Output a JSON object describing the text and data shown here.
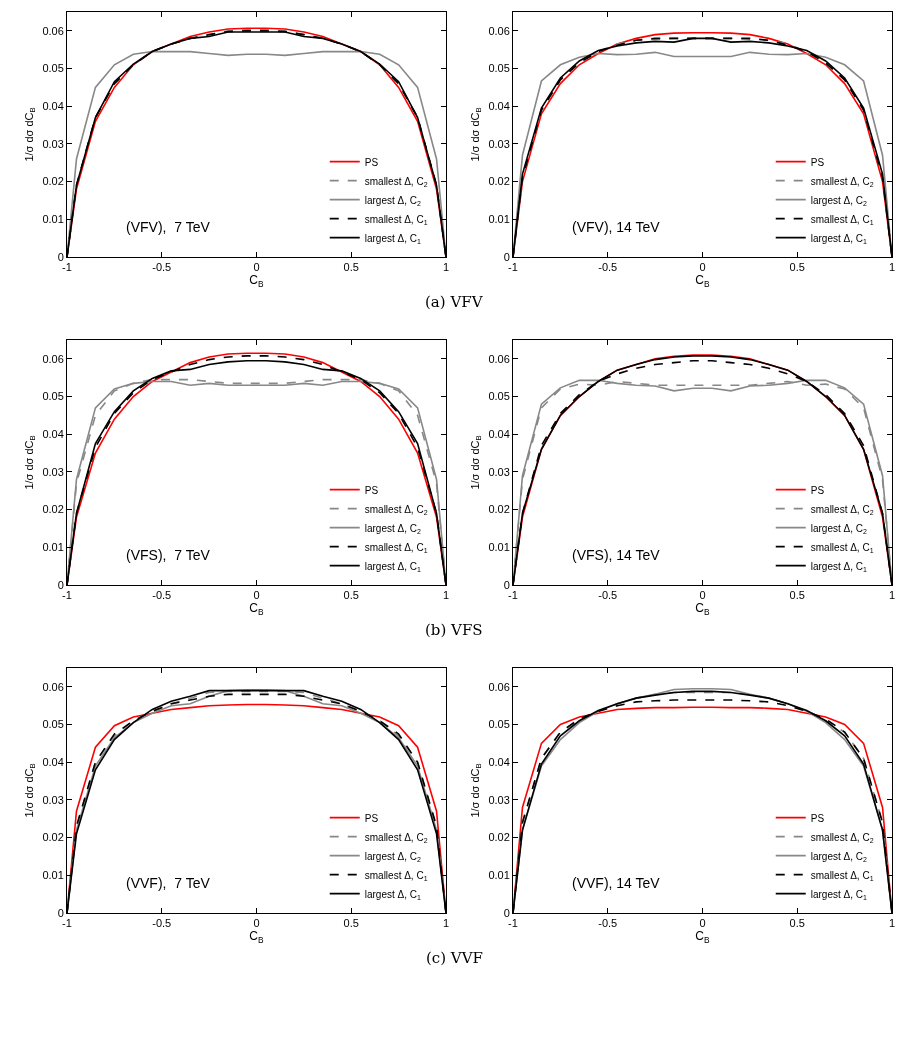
{
  "chart_data": [
    {
      "type": "line",
      "xlabel": "C$_{B}$",
      "ylabel": "1/σ dσ dC$_{B}$",
      "annotations": [
        "(VFV),  7 TeV",
        "(a) VFV"
      ],
      "x": [
        -1,
        -0.95,
        -0.85,
        -0.75,
        -0.65,
        -0.55,
        -0.45,
        -0.35,
        -0.25,
        -0.15,
        -0.05,
        0.05,
        0.15,
        0.25,
        0.35,
        0.45,
        0.55,
        0.65,
        0.75,
        0.85,
        0.95,
        1
      ],
      "xlim": [
        -1,
        1
      ],
      "xticks": [
        -1,
        -0.5,
        0,
        0.5,
        1
      ],
      "ylim": [
        0,
        0.065
      ],
      "yticks": [
        0,
        0.01,
        0.02,
        0.03,
        0.04,
        0.05,
        0.06
      ],
      "legend": "bottom right",
      "series": [
        {
          "name": "PS",
          "color": "#ff0000",
          "line_style": "solid",
          "values": [
            0,
            0.018,
            0.036,
            0.045,
            0.051,
            0.0545,
            0.0565,
            0.0585,
            0.0597,
            0.0605,
            0.0607,
            0.0607,
            0.0605,
            0.0597,
            0.0585,
            0.0565,
            0.0545,
            0.051,
            0.045,
            0.036,
            0.018,
            0
          ]
        },
        {
          "name": "smallest Δ, C$_{2}$",
          "color": "#888888",
          "line_style": "dashed",
          "values": [
            0,
            0.019,
            0.037,
            0.046,
            0.051,
            0.0545,
            0.0565,
            0.058,
            0.059,
            0.06,
            0.0603,
            0.0603,
            0.06,
            0.059,
            0.058,
            0.0565,
            0.0545,
            0.051,
            0.046,
            0.037,
            0.019,
            0
          ]
        },
        {
          "name": "largest Δ, C$_{2}$",
          "color": "#888888",
          "line_style": "solid",
          "values": [
            0,
            0.026,
            0.045,
            0.051,
            0.0538,
            0.0545,
            0.0545,
            0.0545,
            0.054,
            0.0535,
            0.0538,
            0.0538,
            0.0535,
            0.054,
            0.0545,
            0.0545,
            0.0545,
            0.0538,
            0.051,
            0.045,
            0.026,
            0
          ]
        },
        {
          "name": "smallest Δ, C$_{1}$",
          "color": "#000000",
          "line_style": "dashed",
          "values": [
            0,
            0.019,
            0.037,
            0.046,
            0.051,
            0.0545,
            0.0565,
            0.058,
            0.059,
            0.0598,
            0.06,
            0.06,
            0.0598,
            0.059,
            0.058,
            0.0565,
            0.0545,
            0.051,
            0.046,
            0.037,
            0.019,
            0
          ]
        },
        {
          "name": "largest Δ, C$_{1}$",
          "color": "#000000",
          "line_style": "solid",
          "values": [
            0,
            0.019,
            0.037,
            0.0465,
            0.0512,
            0.0545,
            0.0565,
            0.058,
            0.0585,
            0.0597,
            0.0597,
            0.0597,
            0.0597,
            0.0585,
            0.058,
            0.0565,
            0.0545,
            0.0512,
            0.0465,
            0.037,
            0.019,
            0
          ]
        }
      ]
    },
    {
      "type": "line",
      "xlabel": "C$_{B}$",
      "ylabel": "1/σ dσ dC$_{B}$",
      "annotations": [
        "(VFV), 14 TeV"
      ],
      "x": [
        -1,
        -0.95,
        -0.85,
        -0.75,
        -0.65,
        -0.55,
        -0.45,
        -0.35,
        -0.25,
        -0.15,
        -0.05,
        0.05,
        0.15,
        0.25,
        0.35,
        0.45,
        0.55,
        0.65,
        0.75,
        0.85,
        0.95,
        1
      ],
      "xlim": [
        -1,
        1
      ],
      "xticks": [
        -1,
        -0.5,
        0,
        0.5,
        1
      ],
      "ylim": [
        0,
        0.065
      ],
      "yticks": [
        0,
        0.01,
        0.02,
        0.03,
        0.04,
        0.05,
        0.06
      ],
      "legend": "bottom right",
      "series": [
        {
          "name": "PS",
          "color": "#ff0000",
          "line_style": "solid",
          "values": [
            0,
            0.02,
            0.038,
            0.046,
            0.051,
            0.054,
            0.0565,
            0.058,
            0.059,
            0.0594,
            0.0595,
            0.0595,
            0.0594,
            0.059,
            0.058,
            0.0565,
            0.054,
            0.051,
            0.046,
            0.038,
            0.02,
            0
          ]
        },
        {
          "name": "smallest Δ, C$_{2}$",
          "color": "#888888",
          "line_style": "dashed",
          "values": [
            0,
            0.021,
            0.039,
            0.047,
            0.0515,
            0.0545,
            0.0565,
            0.0575,
            0.0578,
            0.058,
            0.058,
            0.058,
            0.058,
            0.0578,
            0.0575,
            0.0565,
            0.0545,
            0.0515,
            0.047,
            0.039,
            0.021,
            0
          ]
        },
        {
          "name": "largest Δ, C$_{2}$",
          "color": "#888888",
          "line_style": "solid",
          "values": [
            0,
            0.027,
            0.0467,
            0.051,
            0.053,
            0.054,
            0.0537,
            0.0538,
            0.0543,
            0.0532,
            0.0532,
            0.0532,
            0.0532,
            0.0543,
            0.0538,
            0.0537,
            0.054,
            0.053,
            0.051,
            0.0467,
            0.027,
            0
          ]
        },
        {
          "name": "smallest Δ, C$_{1}$",
          "color": "#000000",
          "line_style": "dashed",
          "values": [
            0,
            0.021,
            0.039,
            0.047,
            0.0515,
            0.0545,
            0.0562,
            0.0575,
            0.058,
            0.058,
            0.058,
            0.058,
            0.058,
            0.058,
            0.0575,
            0.0562,
            0.0545,
            0.0515,
            0.047,
            0.039,
            0.021,
            0
          ]
        },
        {
          "name": "largest Δ, C$_{1}$",
          "color": "#000000",
          "line_style": "solid",
          "values": [
            0,
            0.022,
            0.0395,
            0.0475,
            0.052,
            0.0548,
            0.056,
            0.0568,
            0.0572,
            0.057,
            0.058,
            0.058,
            0.057,
            0.0572,
            0.0568,
            0.056,
            0.0548,
            0.052,
            0.0475,
            0.0395,
            0.022,
            0
          ]
        }
      ]
    },
    {
      "type": "line",
      "xlabel": "C$_{B}$",
      "ylabel": "1/σ dσ dC$_{B}$",
      "annotations": [
        "(VFS),  7 TeV",
        "(b) VFS"
      ],
      "x": [
        -1,
        -0.95,
        -0.85,
        -0.75,
        -0.65,
        -0.55,
        -0.45,
        -0.35,
        -0.25,
        -0.15,
        -0.05,
        0.05,
        0.15,
        0.25,
        0.35,
        0.45,
        0.55,
        0.65,
        0.75,
        0.85,
        0.95,
        1
      ],
      "xlim": [
        -1,
        1
      ],
      "xticks": [
        -1,
        -0.5,
        0,
        0.5,
        1
      ],
      "ylim": [
        0,
        0.065
      ],
      "yticks": [
        0,
        0.01,
        0.02,
        0.03,
        0.04,
        0.05,
        0.06
      ],
      "legend": "bottom right",
      "series": [
        {
          "name": "PS",
          "color": "#ff0000",
          "line_style": "solid",
          "values": [
            0,
            0.018,
            0.035,
            0.044,
            0.05,
            0.054,
            0.0565,
            0.059,
            0.0605,
            0.0613,
            0.0615,
            0.0615,
            0.0613,
            0.0605,
            0.059,
            0.0565,
            0.054,
            0.05,
            0.044,
            0.035,
            0.018,
            0
          ]
        },
        {
          "name": "smallest Δ, C$_{2}$",
          "color": "#888888",
          "line_style": "dashed",
          "values": [
            0,
            0.027,
            0.045,
            0.0515,
            0.0535,
            0.0545,
            0.0545,
            0.0545,
            0.054,
            0.0535,
            0.0535,
            0.0535,
            0.0535,
            0.054,
            0.0545,
            0.0545,
            0.0545,
            0.0535,
            0.0515,
            0.045,
            0.027,
            0
          ]
        },
        {
          "name": "largest Δ, C$_{2}$",
          "color": "#888888",
          "line_style": "solid",
          "values": [
            0,
            0.028,
            0.047,
            0.052,
            0.0535,
            0.054,
            0.054,
            0.053,
            0.0535,
            0.053,
            0.053,
            0.053,
            0.053,
            0.0535,
            0.053,
            0.054,
            0.054,
            0.0535,
            0.052,
            0.047,
            0.028,
            0
          ]
        },
        {
          "name": "smallest Δ, C$_{1}$",
          "color": "#000000",
          "line_style": "dashed",
          "values": [
            0,
            0.019,
            0.0365,
            0.0455,
            0.051,
            0.0545,
            0.0565,
            0.0585,
            0.0598,
            0.0605,
            0.0608,
            0.0608,
            0.0605,
            0.0598,
            0.0585,
            0.0565,
            0.0545,
            0.051,
            0.0455,
            0.0365,
            0.019,
            0
          ]
        },
        {
          "name": "largest Δ, C$_{1}$",
          "color": "#000000",
          "line_style": "solid",
          "values": [
            0,
            0.019,
            0.0375,
            0.046,
            0.0515,
            0.0548,
            0.0568,
            0.0572,
            0.0585,
            0.0592,
            0.0595,
            0.0595,
            0.0592,
            0.0585,
            0.0572,
            0.0568,
            0.0548,
            0.0515,
            0.046,
            0.0375,
            0.019,
            0
          ]
        }
      ]
    },
    {
      "type": "line",
      "xlabel": "C$_{B}$",
      "ylabel": "1/σ dσ dC$_{B}$",
      "annotations": [
        "(VFS), 14 TeV"
      ],
      "x": [
        -1,
        -0.95,
        -0.85,
        -0.75,
        -0.65,
        -0.55,
        -0.45,
        -0.35,
        -0.25,
        -0.15,
        -0.05,
        0.05,
        0.15,
        0.25,
        0.35,
        0.45,
        0.55,
        0.65,
        0.75,
        0.85,
        0.95,
        1
      ],
      "xlim": [
        -1,
        1
      ],
      "xticks": [
        -1,
        -0.5,
        0,
        0.5,
        1
      ],
      "ylim": [
        0,
        0.065
      ],
      "yticks": [
        0,
        0.01,
        0.02,
        0.03,
        0.04,
        0.05,
        0.06
      ],
      "legend": "bottom right",
      "series": [
        {
          "name": "PS",
          "color": "#ff0000",
          "line_style": "solid",
          "values": [
            0,
            0.018,
            0.036,
            0.045,
            0.05,
            0.054,
            0.057,
            0.0585,
            0.06,
            0.0607,
            0.061,
            0.061,
            0.0607,
            0.06,
            0.0585,
            0.057,
            0.054,
            0.05,
            0.045,
            0.036,
            0.018,
            0
          ]
        },
        {
          "name": "smallest Δ, C$_{2}$",
          "color": "#888888",
          "line_style": "dashed",
          "values": [
            0,
            0.028,
            0.047,
            0.052,
            0.0533,
            0.053,
            0.054,
            0.0535,
            0.053,
            0.053,
            0.053,
            0.053,
            0.053,
            0.053,
            0.0535,
            0.054,
            0.053,
            0.0533,
            0.052,
            0.047,
            0.028,
            0
          ]
        },
        {
          "name": "largest Δ, C$_{2}$",
          "color": "#888888",
          "line_style": "solid",
          "values": [
            0,
            0.029,
            0.048,
            0.0523,
            0.0543,
            0.0543,
            0.0535,
            0.053,
            0.0528,
            0.0515,
            0.0522,
            0.0522,
            0.0515,
            0.0528,
            0.053,
            0.0535,
            0.0543,
            0.0543,
            0.0523,
            0.048,
            0.029,
            0
          ]
        },
        {
          "name": "smallest Δ, C$_{1}$",
          "color": "#000000",
          "line_style": "dashed",
          "values": [
            0,
            0.019,
            0.037,
            0.0455,
            0.0505,
            0.054,
            0.056,
            0.0575,
            0.0585,
            0.059,
            0.0595,
            0.0595,
            0.059,
            0.0585,
            0.0575,
            0.056,
            0.054,
            0.0505,
            0.0455,
            0.037,
            0.019,
            0
          ]
        },
        {
          "name": "largest Δ, C$_{1}$",
          "color": "#000000",
          "line_style": "solid",
          "values": [
            0,
            0.019,
            0.036,
            0.045,
            0.05,
            0.054,
            0.057,
            0.0585,
            0.0598,
            0.0605,
            0.0608,
            0.0608,
            0.0605,
            0.0598,
            0.0585,
            0.057,
            0.054,
            0.05,
            0.045,
            0.036,
            0.019,
            0
          ]
        }
      ]
    },
    {
      "type": "line",
      "xlabel": "C$_{B}$",
      "ylabel": "1/σ dσ dC$_{B}$",
      "annotations": [
        "(VVF),  7 TeV",
        "(c) VVF"
      ],
      "x": [
        -1,
        -0.95,
        -0.85,
        -0.75,
        -0.65,
        -0.55,
        -0.45,
        -0.35,
        -0.25,
        -0.15,
        -0.05,
        0.05,
        0.15,
        0.25,
        0.35,
        0.45,
        0.55,
        0.65,
        0.75,
        0.85,
        0.95,
        1
      ],
      "xlim": [
        -1,
        1
      ],
      "xticks": [
        -1,
        -0.5,
        0,
        0.5,
        1
      ],
      "ylim": [
        0,
        0.065
      ],
      "yticks": [
        0,
        0.01,
        0.02,
        0.03,
        0.04,
        0.05,
        0.06
      ],
      "legend": "bottom right",
      "series": [
        {
          "name": "PS",
          "color": "#ff0000",
          "line_style": "solid",
          "values": [
            0,
            0.027,
            0.044,
            0.0497,
            0.052,
            0.053,
            0.054,
            0.0545,
            0.055,
            0.0552,
            0.0553,
            0.0553,
            0.0552,
            0.055,
            0.0545,
            0.054,
            0.053,
            0.052,
            0.0497,
            0.044,
            0.027,
            0
          ]
        },
        {
          "name": "smallest Δ, C$_{2}$",
          "color": "#888888",
          "line_style": "dashed",
          "values": [
            0,
            0.023,
            0.04,
            0.047,
            0.051,
            0.0535,
            0.0555,
            0.057,
            0.0585,
            0.0588,
            0.0588,
            0.0588,
            0.0588,
            0.0585,
            0.057,
            0.0555,
            0.0535,
            0.051,
            0.047,
            0.04,
            0.023,
            0
          ]
        },
        {
          "name": "largest Δ, C$_{2}$",
          "color": "#888888",
          "line_style": "solid",
          "values": [
            0,
            0.022,
            0.039,
            0.0465,
            0.0505,
            0.053,
            0.055,
            0.0555,
            0.0575,
            0.059,
            0.0592,
            0.0592,
            0.059,
            0.0575,
            0.0555,
            0.055,
            0.053,
            0.0505,
            0.0465,
            0.039,
            0.022,
            0
          ]
        },
        {
          "name": "smallest Δ, C$_{1}$",
          "color": "#000000",
          "line_style": "dashed",
          "values": [
            0,
            0.023,
            0.04,
            0.0475,
            0.051,
            0.0535,
            0.0555,
            0.0565,
            0.0575,
            0.058,
            0.058,
            0.058,
            0.058,
            0.0575,
            0.0565,
            0.0555,
            0.0535,
            0.051,
            0.0475,
            0.04,
            0.023,
            0
          ]
        },
        {
          "name": "largest Δ, C$_{1}$",
          "color": "#000000",
          "line_style": "solid",
          "values": [
            0,
            0.021,
            0.038,
            0.046,
            0.0505,
            0.054,
            0.0562,
            0.0575,
            0.059,
            0.059,
            0.059,
            0.059,
            0.059,
            0.059,
            0.0575,
            0.0562,
            0.054,
            0.0505,
            0.046,
            0.038,
            0.021,
            0
          ]
        }
      ]
    },
    {
      "type": "line",
      "xlabel": "C$_{B}$",
      "ylabel": "1/σ dσ dC$_{B}$",
      "annotations": [
        "(VVF), 14 TeV"
      ],
      "x": [
        -1,
        -0.95,
        -0.85,
        -0.75,
        -0.65,
        -0.55,
        -0.45,
        -0.35,
        -0.25,
        -0.15,
        -0.05,
        0.05,
        0.15,
        0.25,
        0.35,
        0.45,
        0.55,
        0.65,
        0.75,
        0.85,
        0.95,
        1
      ],
      "xlim": [
        -1,
        1
      ],
      "xticks": [
        -1,
        -0.5,
        0,
        0.5,
        1
      ],
      "ylim": [
        0,
        0.065
      ],
      "yticks": [
        0,
        0.01,
        0.02,
        0.03,
        0.04,
        0.05,
        0.06
      ],
      "legend": "bottom right",
      "series": [
        {
          "name": "PS",
          "color": "#ff0000",
          "line_style": "solid",
          "values": [
            0,
            0.028,
            0.045,
            0.05,
            0.052,
            0.053,
            0.054,
            0.0543,
            0.0545,
            0.0545,
            0.0546,
            0.0546,
            0.0545,
            0.0545,
            0.0543,
            0.054,
            0.053,
            0.052,
            0.05,
            0.045,
            0.028,
            0
          ]
        },
        {
          "name": "smallest Δ, C$_{2}$",
          "color": "#888888",
          "line_style": "dashed",
          "values": [
            0,
            0.024,
            0.041,
            0.048,
            0.051,
            0.0535,
            0.0555,
            0.057,
            0.058,
            0.0585,
            0.0585,
            0.0585,
            0.0585,
            0.058,
            0.057,
            0.0555,
            0.0535,
            0.051,
            0.048,
            0.041,
            0.024,
            0
          ]
        },
        {
          "name": "largest Δ, C$_{2}$",
          "color": "#888888",
          "line_style": "solid",
          "values": [
            0,
            0.022,
            0.039,
            0.046,
            0.0505,
            0.0535,
            0.0555,
            0.057,
            0.058,
            0.0593,
            0.0595,
            0.0595,
            0.0593,
            0.058,
            0.057,
            0.0555,
            0.0535,
            0.0505,
            0.046,
            0.039,
            0.022,
            0
          ]
        },
        {
          "name": "smallest Δ, C$_{1}$",
          "color": "#000000",
          "line_style": "dashed",
          "values": [
            0,
            0.024,
            0.041,
            0.048,
            0.0515,
            0.0535,
            0.055,
            0.056,
            0.0563,
            0.0565,
            0.0565,
            0.0565,
            0.0565,
            0.0563,
            0.056,
            0.055,
            0.0535,
            0.0515,
            0.048,
            0.041,
            0.024,
            0
          ]
        },
        {
          "name": "largest Δ, C$_{1}$",
          "color": "#000000",
          "line_style": "solid",
          "values": [
            0,
            0.022,
            0.0395,
            0.047,
            0.051,
            0.0537,
            0.0555,
            0.057,
            0.0578,
            0.0585,
            0.0588,
            0.0588,
            0.0585,
            0.0578,
            0.057,
            0.0555,
            0.0537,
            0.051,
            0.047,
            0.0395,
            0.022,
            0
          ]
        }
      ]
    }
  ]
}
